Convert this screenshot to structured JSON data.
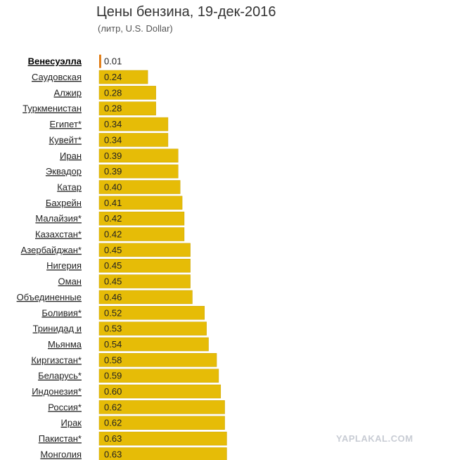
{
  "chart_data": {
    "type": "bar",
    "orientation": "horizontal",
    "title": "Цены бензина, 19-дек-2016",
    "subtitle": "(литр, U.S. Dollar)",
    "categories": [
      "Венесуэлла",
      "Саудовская",
      "Алжир",
      "Туркменистан",
      "Египет*",
      "Кувейт*",
      "Иран",
      "Эквадор",
      "Катар",
      "Бахрейн",
      "Малайзия*",
      "Казахстан*",
      "Азербайджан*",
      "Нигерия",
      "Оман",
      "Объединенные",
      "Боливия*",
      "Тринидад и",
      "Мьянма",
      "Киргизстан*",
      "Беларусь*",
      "Индонезия*",
      "Россия*",
      "Ирак",
      "Пакистан*",
      "Монголия"
    ],
    "values": [
      0.01,
      0.24,
      0.28,
      0.28,
      0.34,
      0.34,
      0.39,
      0.39,
      0.4,
      0.41,
      0.42,
      0.42,
      0.45,
      0.45,
      0.45,
      0.46,
      0.52,
      0.53,
      0.54,
      0.58,
      0.59,
      0.6,
      0.62,
      0.62,
      0.63,
      0.63
    ],
    "value_labels": [
      "0.01",
      "0.24",
      "0.28",
      "0.28",
      "0.34",
      "0.34",
      "0.39",
      "0.39",
      "0.40",
      "0.41",
      "0.42",
      "0.42",
      "0.45",
      "0.45",
      "0.45",
      "0.46",
      "0.52",
      "0.53",
      "0.54",
      "0.58",
      "0.59",
      "0.60",
      "0.62",
      "0.62",
      "0.63",
      "0.63"
    ],
    "highlighted_category": "Венесуэлла",
    "colors": {
      "bar": "#e6bc07",
      "highlight": "#e07b12",
      "bar_stroke": "#c9a200"
    }
  },
  "watermark": "YAPLAKAL.COM"
}
